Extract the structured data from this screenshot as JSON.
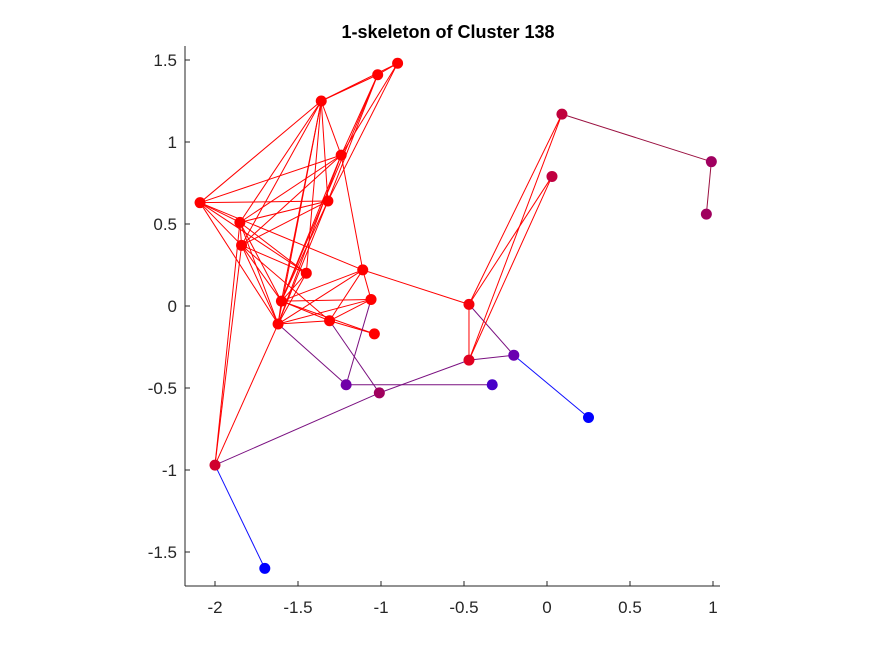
{
  "chart_data": {
    "type": "scatter",
    "title": "1-skeleton of Cluster 138",
    "xlabel": "",
    "ylabel": "",
    "xlim": [
      -2.2,
      1.05
    ],
    "ylim": [
      -1.7,
      1.55
    ],
    "xticks": [
      -2,
      -1.5,
      -1,
      -0.5,
      0,
      0.5,
      1
    ],
    "xtick_labels": [
      "-2",
      "-1.5",
      "-1",
      "-0.5",
      "0",
      "0.5",
      "1"
    ],
    "yticks": [
      1.5,
      1,
      0.5,
      0,
      -0.5,
      -1,
      -1.5
    ],
    "ytick_labels": [
      "1.5",
      "1",
      "0.5",
      "0",
      "-0.5",
      "-1",
      "-1.5"
    ],
    "grid": false,
    "nodes": [
      {
        "x": -0.9,
        "y": 1.48,
        "color": "#ff0000"
      },
      {
        "x": -1.02,
        "y": 1.41,
        "color": "#ff0000"
      },
      {
        "x": -1.36,
        "y": 1.25,
        "color": "#ff0000"
      },
      {
        "x": -1.24,
        "y": 0.92,
        "color": "#ff0000"
      },
      {
        "x": -1.32,
        "y": 0.64,
        "color": "#ff0000"
      },
      {
        "x": -2.09,
        "y": 0.63,
        "color": "#ff0000"
      },
      {
        "x": -1.85,
        "y": 0.51,
        "color": "#ff0000"
      },
      {
        "x": -1.84,
        "y": 0.37,
        "color": "#ff0000"
      },
      {
        "x": -1.45,
        "y": 0.2,
        "color": "#ff0000"
      },
      {
        "x": -1.11,
        "y": 0.22,
        "color": "#ff0000"
      },
      {
        "x": -1.06,
        "y": 0.04,
        "color": "#ff0000"
      },
      {
        "x": -1.6,
        "y": 0.03,
        "color": "#ff0000"
      },
      {
        "x": -1.62,
        "y": -0.11,
        "color": "#ff0000"
      },
      {
        "x": -1.31,
        "y": -0.09,
        "color": "#ff0000"
      },
      {
        "x": -1.04,
        "y": -0.17,
        "color": "#ff0000"
      },
      {
        "x": -0.47,
        "y": 0.01,
        "color": "#f5000a"
      },
      {
        "x": -0.47,
        "y": -0.33,
        "color": "#e00020"
      },
      {
        "x": -0.2,
        "y": -0.3,
        "color": "#6a00b0"
      },
      {
        "x": -1.21,
        "y": -0.48,
        "color": "#7000a8"
      },
      {
        "x": -1.01,
        "y": -0.53,
        "color": "#a0005e"
      },
      {
        "x": -0.33,
        "y": -0.48,
        "color": "#4800c8"
      },
      {
        "x": 0.25,
        "y": -0.68,
        "color": "#0000ff"
      },
      {
        "x": -2.0,
        "y": -0.97,
        "color": "#d0002e"
      },
      {
        "x": -1.7,
        "y": -1.6,
        "color": "#0000ff"
      },
      {
        "x": 0.09,
        "y": 1.17,
        "color": "#c0003c"
      },
      {
        "x": 0.03,
        "y": 0.79,
        "color": "#c00040"
      },
      {
        "x": 0.99,
        "y": 0.88,
        "color": "#a00060"
      },
      {
        "x": 0.96,
        "y": 0.56,
        "color": "#a0005e"
      }
    ],
    "edges": [
      [
        0,
        1
      ],
      [
        0,
        2
      ],
      [
        1,
        2
      ],
      [
        0,
        3
      ],
      [
        1,
        3
      ],
      [
        0,
        4
      ],
      [
        1,
        4
      ],
      [
        1,
        11
      ],
      [
        2,
        3
      ],
      [
        2,
        4
      ],
      [
        2,
        5
      ],
      [
        2,
        6
      ],
      [
        2,
        7
      ],
      [
        2,
        8
      ],
      [
        2,
        11
      ],
      [
        2,
        12
      ],
      [
        3,
        5
      ],
      [
        3,
        6
      ],
      [
        3,
        7
      ],
      [
        3,
        9
      ],
      [
        3,
        11
      ],
      [
        3,
        12
      ],
      [
        4,
        5
      ],
      [
        4,
        6
      ],
      [
        4,
        7
      ],
      [
        4,
        11
      ],
      [
        4,
        12
      ],
      [
        5,
        6
      ],
      [
        5,
        7
      ],
      [
        5,
        8
      ],
      [
        5,
        9
      ],
      [
        5,
        12
      ],
      [
        6,
        7
      ],
      [
        6,
        8
      ],
      [
        6,
        11
      ],
      [
        6,
        12
      ],
      [
        6,
        22
      ],
      [
        7,
        8
      ],
      [
        7,
        11
      ],
      [
        7,
        12
      ],
      [
        7,
        13
      ],
      [
        7,
        22
      ],
      [
        8,
        11
      ],
      [
        8,
        12
      ],
      [
        9,
        10
      ],
      [
        9,
        11
      ],
      [
        9,
        12
      ],
      [
        9,
        13
      ],
      [
        9,
        15
      ],
      [
        10,
        11
      ],
      [
        10,
        12
      ],
      [
        10,
        13
      ],
      [
        11,
        12
      ],
      [
        11,
        13
      ],
      [
        11,
        14
      ],
      [
        12,
        13
      ],
      [
        12,
        22
      ],
      [
        13,
        14
      ],
      [
        15,
        16
      ],
      [
        15,
        17
      ],
      [
        15,
        24
      ],
      [
        15,
        25
      ],
      [
        16,
        24
      ],
      [
        16,
        25
      ],
      [
        24,
        26
      ],
      [
        26,
        27
      ],
      [
        16,
        17
      ],
      [
        17,
        21
      ],
      [
        12,
        18
      ],
      [
        10,
        18
      ],
      [
        13,
        19
      ],
      [
        18,
        20
      ],
      [
        19,
        16
      ],
      [
        19,
        22
      ],
      [
        22,
        23
      ]
    ],
    "edge_colors": {
      "red": "#ff0000",
      "purple": "#7a1080",
      "blue": "#1010ff",
      "maroon": "#9a1040"
    }
  }
}
